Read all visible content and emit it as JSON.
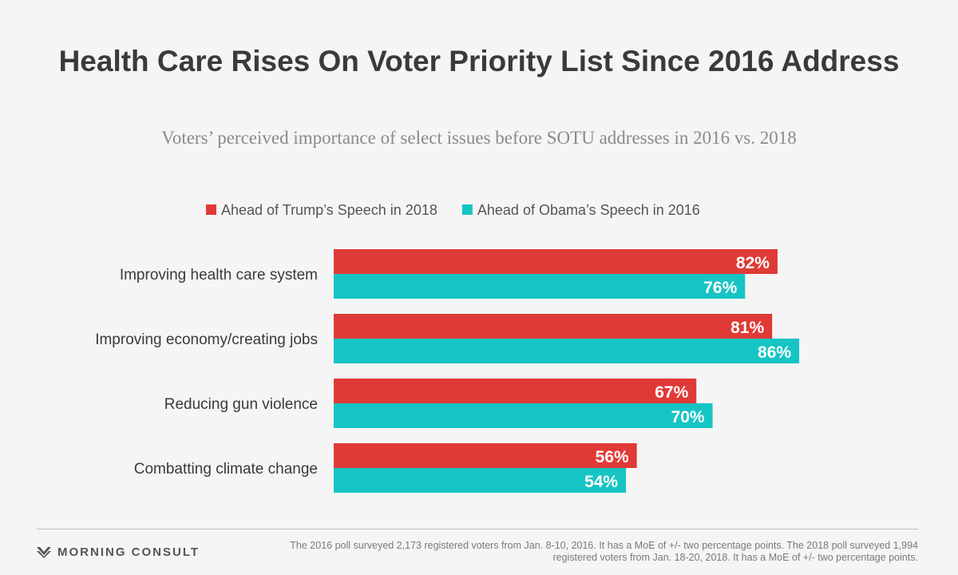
{
  "header": {
    "title": "Health Care Rises On Voter Priority List Since 2016 Address",
    "subtitle": "Voters’ perceived importance of select issues before SOTU addresses in 2016 vs. 2018"
  },
  "colors": {
    "trump_2018": "#e03a36",
    "obama_2016": "#17c4c4",
    "value_label": "#ffffff",
    "category_label": "#3a3a3a",
    "legend_text": "#555555"
  },
  "chart_data": {
    "type": "bar",
    "orientation": "horizontal",
    "title": "Health Care Rises On Voter Priority List Since 2016 Address",
    "subtitle": "Voters’ perceived importance of select issues before SOTU addresses in 2016 vs. 2018",
    "categories": [
      "Improving health care system",
      "Improving economy/creating jobs",
      "Reducing gun violence",
      "Combatting climate change"
    ],
    "series": [
      {
        "name": "Ahead of Trump’s Speech in 2018",
        "color": "#e03a36",
        "values": [
          82,
          81,
          67,
          56
        ],
        "labels": [
          "82%",
          "81%",
          "67%",
          "56%"
        ]
      },
      {
        "name": "Ahead of Obama’s Speech in 2016",
        "color": "#17c4c4",
        "values": [
          76,
          86,
          70,
          54
        ],
        "labels": [
          "76%",
          "86%",
          "70%",
          "54%"
        ]
      }
    ],
    "value_unit": "%",
    "xlim": [
      0,
      100
    ],
    "grid": false,
    "legend_position": "top"
  },
  "footer": {
    "brand": "MORNING CONSULT",
    "brand_icon": "morning-consult-logo-icon",
    "note_line1": "The 2016 poll surveyed 2,173 registered voters from Jan. 8-10, 2016. It has a MoE of +/- two percentage points. The 2018 poll surveyed 1,994",
    "note_line2": "registered voters from Jan. 18-20, 2018. It has a MoE of +/- two percentage points."
  }
}
